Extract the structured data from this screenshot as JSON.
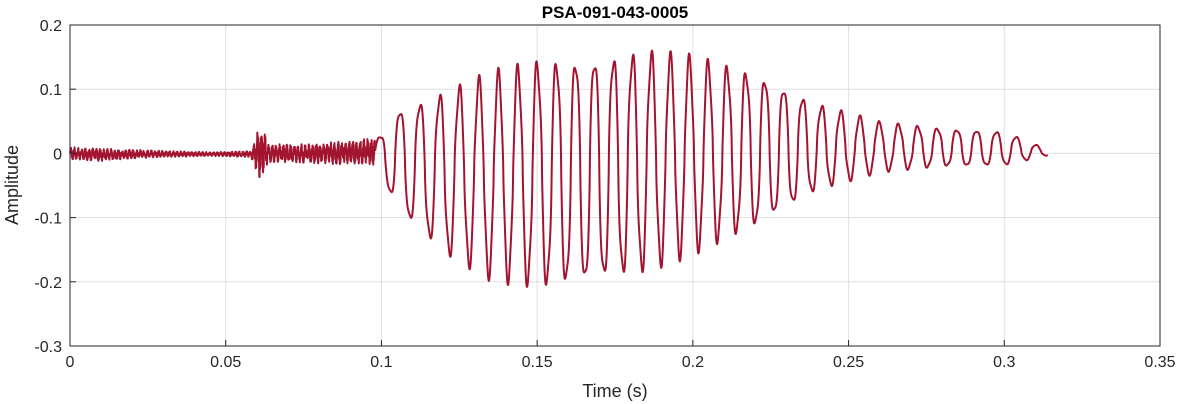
{
  "chart_data": {
    "type": "line",
    "title": "PSA-091-043-0005",
    "xlabel": "Time (s)",
    "ylabel": "Amplitude",
    "xlim": [
      0,
      0.35
    ],
    "ylim": [
      -0.3,
      0.2
    ],
    "xticks": [
      0,
      0.05,
      0.1,
      0.15,
      0.2,
      0.25,
      0.3,
      0.35
    ],
    "xtick_labels": [
      "0",
      "0.05",
      "0.1",
      "0.15",
      "0.2",
      "0.25",
      "0.3",
      "0.35"
    ],
    "yticks": [
      -0.3,
      -0.2,
      -0.1,
      0,
      0.1,
      0.2
    ],
    "ytick_labels": [
      "-0.3",
      "-0.2",
      "-0.1",
      "0",
      "0.1",
      "0.2"
    ],
    "grid": true,
    "series": [
      {
        "color": "#A2142F",
        "envelope": {
          "t": [
            0,
            0.01,
            0.02,
            0.03,
            0.045,
            0.058,
            0.061,
            0.064,
            0.075,
            0.09,
            0.098,
            0.1,
            0.105,
            0.12,
            0.135,
            0.15,
            0.165,
            0.185,
            0.2,
            0.22,
            0.24,
            0.26,
            0.28,
            0.3,
            0.314
          ],
          "max": [
            0.01,
            0.008,
            0.006,
            0.004,
            0.002,
            0.004,
            0.05,
            0.014,
            0.015,
            0.02,
            0.025,
            0.03,
            0.07,
            0.1,
            0.13,
            0.15,
            0.155,
            0.165,
            0.155,
            0.13,
            0.08,
            0.05,
            0.04,
            0.035,
            0.006
          ],
          "min": [
            -0.01,
            -0.012,
            -0.008,
            -0.006,
            -0.004,
            -0.006,
            -0.04,
            -0.014,
            -0.015,
            -0.018,
            -0.02,
            -0.035,
            -0.09,
            -0.16,
            -0.2,
            -0.215,
            -0.21,
            -0.19,
            -0.16,
            -0.12,
            -0.06,
            -0.03,
            -0.022,
            -0.02,
            -0.003
          ]
        }
      }
    ]
  }
}
